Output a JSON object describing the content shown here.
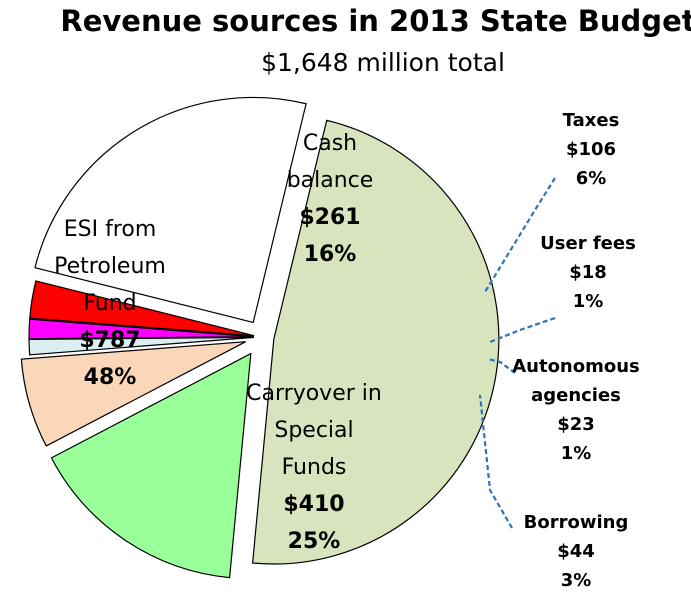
{
  "chart_data": {
    "type": "pie",
    "title": "Revenue sources in 2013 State Budget",
    "subtitle": "$1,648 million total",
    "slices": [
      {
        "label": "ESI from Petroleum Fund",
        "lines": [
          "ESI from",
          "Petroleum",
          "Fund"
        ],
        "value_label": "$787",
        "percent_label": "48%",
        "value": 787,
        "percent": 48,
        "color": "#d7e4bd"
      },
      {
        "label": "Cash balance",
        "lines": [
          "Cash",
          "balance"
        ],
        "value_label": "$261",
        "percent_label": "16%",
        "value": 261,
        "percent": 16,
        "color": "#99ff99"
      },
      {
        "label": "Taxes",
        "lines": [
          "Taxes"
        ],
        "value_label": "$106",
        "percent_label": "6%",
        "value": 106,
        "percent": 6,
        "color": "#fad7b8"
      },
      {
        "label": "User fees",
        "lines": [
          "User fees"
        ],
        "value_label": "$18",
        "percent_label": "1%",
        "value": 18,
        "percent": 1,
        "color": "#dbeef4"
      },
      {
        "label": "Autonomous agencies",
        "lines": [
          "Autonomous",
          "agencies"
        ],
        "value_label": "$23",
        "percent_label": "1%",
        "value": 23,
        "percent": 1,
        "color": "#ff00ff"
      },
      {
        "label": "Borrowing",
        "lines": [
          "Borrowing"
        ],
        "value_label": "$44",
        "percent_label": "3%",
        "value": 44,
        "percent": 3,
        "color": "#ff0000"
      },
      {
        "label": "Carryover in Special Funds",
        "lines": [
          "Carryover in",
          "Special",
          "Funds"
        ],
        "value_label": "$410",
        "percent_label": "25%",
        "value": 410,
        "percent": 25,
        "color": "#ffffff"
      }
    ]
  }
}
